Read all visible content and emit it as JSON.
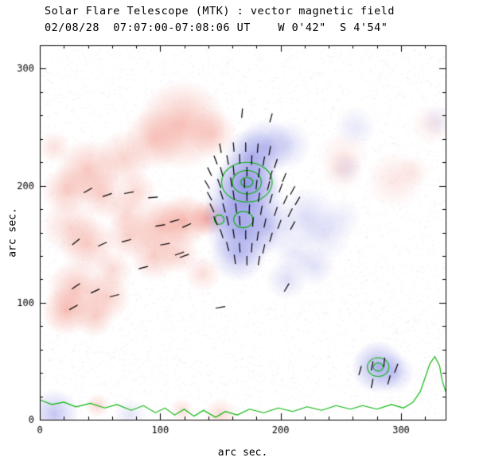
{
  "colors": {
    "positive_blue": "#7d80e2",
    "negative_red": "#ef8070",
    "contour": "#00b400",
    "vector": "#000000",
    "frame": "#000000",
    "background": "#ffffff"
  },
  "chart_data": {
    "type": "heatmap",
    "title": "Solar Flare Telescope (MTK) : vector magnetic field",
    "subtitle": "02/08/28  07:07:00-07:08:06 UT    W 0'42\"  S 4'54\"",
    "xlabel": "arc sec.",
    "ylabel": "arc sec.",
    "x_range": [
      0,
      337
    ],
    "y_range": [
      0,
      320
    ],
    "x_ticks": [
      0,
      100,
      200,
      300
    ],
    "y_ticks": [
      0,
      100,
      200,
      300
    ],
    "minor_tick_step": 20,
    "grid": false,
    "legend": false,
    "blobs": {
      "red": [
        [
          118,
          252,
          22,
          0.5
        ],
        [
          95,
          240,
          15,
          0.4
        ],
        [
          143,
          245,
          12,
          0.35
        ],
        [
          12,
          233,
          8,
          0.25
        ],
        [
          70,
          223,
          14,
          0.35
        ],
        [
          40,
          212,
          16,
          0.45
        ],
        [
          22,
          196,
          12,
          0.4
        ],
        [
          52,
          192,
          12,
          0.35
        ],
        [
          80,
          195,
          10,
          0.3
        ],
        [
          25,
          165,
          14,
          0.3
        ],
        [
          40,
          150,
          14,
          0.4
        ],
        [
          75,
          158,
          12,
          0.4
        ],
        [
          72,
          178,
          10,
          0.3
        ],
        [
          100,
          165,
          14,
          0.5
        ],
        [
          120,
          170,
          13,
          0.55
        ],
        [
          139,
          172,
          9,
          0.65
        ],
        [
          95,
          140,
          12,
          0.4
        ],
        [
          115,
          142,
          10,
          0.35
        ],
        [
          60,
          128,
          10,
          0.3
        ],
        [
          30,
          112,
          14,
          0.45
        ],
        [
          55,
          105,
          12,
          0.4
        ],
        [
          22,
          93,
          12,
          0.5
        ],
        [
          45,
          88,
          10,
          0.4
        ],
        [
          135,
          125,
          9,
          0.25
        ],
        [
          252,
          226,
          12,
          0.15
        ],
        [
          251,
          213,
          10,
          0.18
        ],
        [
          295,
          205,
          14,
          0.2
        ],
        [
          310,
          212,
          8,
          0.15
        ],
        [
          325,
          252,
          10,
          0.15
        ],
        [
          48,
          12,
          6,
          0.3
        ],
        [
          150,
          4,
          8,
          0.3
        ],
        [
          118,
          8,
          6,
          0.25
        ]
      ],
      "blue": [
        [
          172,
          202,
          16,
          0.75
        ],
        [
          170,
          186,
          20,
          0.55
        ],
        [
          168,
          162,
          18,
          0.55
        ],
        [
          165,
          142,
          14,
          0.45
        ],
        [
          176,
          225,
          14,
          0.5
        ],
        [
          188,
          233,
          14,
          0.45
        ],
        [
          205,
          235,
          12,
          0.28
        ],
        [
          190,
          165,
          14,
          0.35
        ],
        [
          155,
          175,
          12,
          0.35
        ],
        [
          222,
          172,
          15,
          0.28
        ],
        [
          238,
          158,
          12,
          0.2
        ],
        [
          228,
          132,
          10,
          0.25
        ],
        [
          205,
          120,
          10,
          0.25
        ],
        [
          212,
          142,
          10,
          0.2
        ],
        [
          250,
          172,
          10,
          0.15
        ],
        [
          255,
          215,
          8,
          0.14
        ],
        [
          262,
          250,
          10,
          0.18
        ],
        [
          281,
          45,
          13,
          0.6
        ],
        [
          294,
          40,
          10,
          0.35
        ],
        [
          12,
          5,
          12,
          0.45
        ],
        [
          75,
          4,
          8,
          0.2
        ],
        [
          330,
          255,
          8,
          0.15
        ]
      ]
    },
    "contours": {
      "rings": [
        [
          172,
          203,
          21,
          17
        ],
        [
          172,
          203,
          12,
          10
        ],
        [
          172,
          203,
          5,
          4
        ],
        [
          169,
          171,
          8,
          7
        ],
        [
          149,
          171,
          4,
          4
        ],
        [
          281,
          45,
          9,
          8
        ],
        [
          281,
          45,
          4,
          3.5
        ]
      ],
      "polylines": [
        [
          [
            0,
            17
          ],
          [
            10,
            13
          ],
          [
            20,
            15
          ],
          [
            30,
            11
          ],
          [
            42,
            14
          ],
          [
            54,
            10
          ],
          [
            64,
            13
          ],
          [
            76,
            8
          ],
          [
            86,
            12
          ],
          [
            96,
            6
          ],
          [
            104,
            10
          ],
          [
            112,
            4
          ],
          [
            120,
            9
          ],
          [
            128,
            3
          ],
          [
            136,
            8
          ],
          [
            146,
            2
          ],
          [
            154,
            7
          ],
          [
            164,
            4
          ],
          [
            174,
            9
          ],
          [
            186,
            6
          ],
          [
            198,
            10
          ],
          [
            210,
            7
          ],
          [
            222,
            11
          ],
          [
            234,
            8
          ],
          [
            246,
            12
          ],
          [
            258,
            9
          ],
          [
            268,
            12
          ],
          [
            280,
            9
          ],
          [
            292,
            13
          ],
          [
            302,
            10
          ],
          [
            310,
            15
          ],
          [
            316,
            24
          ],
          [
            320,
            36
          ],
          [
            324,
            48
          ],
          [
            328,
            54
          ],
          [
            332,
            46
          ],
          [
            334,
            34
          ],
          [
            337,
            24
          ]
        ]
      ]
    },
    "vectors": [
      [
        150,
        232,
        100
      ],
      [
        161,
        233,
        95
      ],
      [
        171,
        233,
        90
      ],
      [
        181,
        232,
        85
      ],
      [
        191,
        230,
        80
      ],
      [
        146,
        222,
        110
      ],
      [
        156,
        222,
        100
      ],
      [
        166,
        223,
        92
      ],
      [
        176,
        222,
        88
      ],
      [
        186,
        221,
        80
      ],
      [
        196,
        219,
        72
      ],
      [
        141,
        212,
        115
      ],
      [
        151,
        212,
        105
      ],
      [
        161,
        213,
        95
      ],
      [
        172,
        212,
        90
      ],
      [
        182,
        211,
        82
      ],
      [
        192,
        209,
        75
      ],
      [
        203,
        207,
        68
      ],
      [
        139,
        201,
        120
      ],
      [
        149,
        202,
        110
      ],
      [
        159,
        203,
        98
      ],
      [
        170,
        202,
        90
      ],
      [
        180,
        201,
        84
      ],
      [
        190,
        200,
        76
      ],
      [
        200,
        198,
        70
      ],
      [
        210,
        196,
        62
      ],
      [
        141,
        191,
        118
      ],
      [
        151,
        192,
        108
      ],
      [
        161,
        192,
        98
      ],
      [
        172,
        191,
        90
      ],
      [
        182,
        190,
        82
      ],
      [
        192,
        189,
        74
      ],
      [
        204,
        188,
        66
      ],
      [
        214,
        187,
        60
      ],
      [
        143,
        181,
        115
      ],
      [
        153,
        181,
        105
      ],
      [
        163,
        181,
        96
      ],
      [
        174,
        180,
        88
      ],
      [
        184,
        179,
        80
      ],
      [
        196,
        178,
        72
      ],
      [
        208,
        177,
        64
      ],
      [
        146,
        170,
        112
      ],
      [
        156,
        170,
        102
      ],
      [
        166,
        170,
        94
      ],
      [
        177,
        169,
        86
      ],
      [
        187,
        168,
        78
      ],
      [
        199,
        167,
        70
      ],
      [
        210,
        166,
        62
      ],
      [
        151,
        159,
        108
      ],
      [
        161,
        159,
        98
      ],
      [
        171,
        158,
        90
      ],
      [
        181,
        157,
        82
      ],
      [
        192,
        156,
        74
      ],
      [
        156,
        148,
        104
      ],
      [
        166,
        147,
        94
      ],
      [
        176,
        147,
        86
      ],
      [
        186,
        146,
        78
      ],
      [
        162,
        137,
        98
      ],
      [
        172,
        136,
        90
      ],
      [
        182,
        136,
        82
      ],
      [
        40,
        196,
        30
      ],
      [
        56,
        192,
        20
      ],
      [
        74,
        194,
        10
      ],
      [
        94,
        190,
        5
      ],
      [
        30,
        152,
        40
      ],
      [
        52,
        150,
        25
      ],
      [
        72,
        153,
        15
      ],
      [
        100,
        166,
        10
      ],
      [
        112,
        170,
        15
      ],
      [
        122,
        166,
        25
      ],
      [
        104,
        150,
        10
      ],
      [
        116,
        142,
        20
      ],
      [
        120,
        140,
        20
      ],
      [
        86,
        130,
        15
      ],
      [
        30,
        114,
        35
      ],
      [
        46,
        110,
        25
      ],
      [
        62,
        106,
        15
      ],
      [
        28,
        96,
        30
      ],
      [
        150,
        96,
        10
      ],
      [
        205,
        113,
        60
      ],
      [
        168,
        262,
        85
      ],
      [
        192,
        258,
        75
      ],
      [
        266,
        42,
        75
      ],
      [
        276,
        46,
        80
      ],
      [
        286,
        49,
        85
      ],
      [
        296,
        44,
        70
      ],
      [
        276,
        31,
        80
      ],
      [
        290,
        34,
        75
      ]
    ]
  }
}
